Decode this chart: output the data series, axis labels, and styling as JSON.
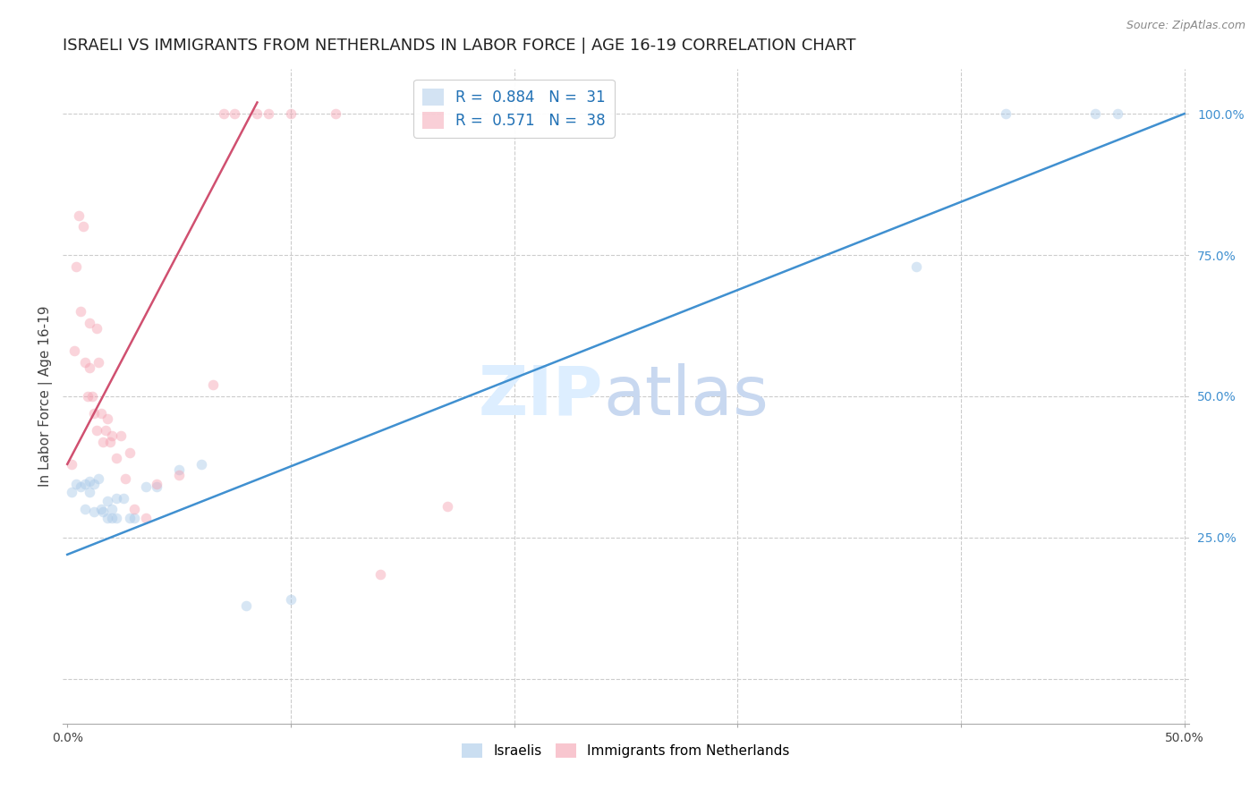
{
  "title": "ISRAELI VS IMMIGRANTS FROM NETHERLANDS IN LABOR FORCE | AGE 16-19 CORRELATION CHART",
  "source": "Source: ZipAtlas.com",
  "ylabel": "In Labor Force | Age 16-19",
  "y_ticks_right": [
    0.25,
    0.5,
    0.75,
    1.0
  ],
  "y_tick_labels_right": [
    "25.0%",
    "50.0%",
    "75.0%",
    "100.0%"
  ],
  "xlim": [
    -0.002,
    0.502
  ],
  "ylim": [
    -0.08,
    1.08
  ],
  "blue_color": "#a8c8e8",
  "pink_color": "#f4a0b0",
  "blue_line_color": "#4090d0",
  "pink_line_color": "#d05070",
  "watermark": "ZIPatlas",
  "watermark_color": "#ddeeff",
  "blue_scatter_x": [
    0.002,
    0.004,
    0.006,
    0.008,
    0.008,
    0.01,
    0.01,
    0.012,
    0.012,
    0.014,
    0.015,
    0.016,
    0.018,
    0.018,
    0.02,
    0.02,
    0.022,
    0.022,
    0.025,
    0.028,
    0.03,
    0.035,
    0.04,
    0.05,
    0.06,
    0.08,
    0.1,
    0.38,
    0.42,
    0.46,
    0.47
  ],
  "blue_scatter_y": [
    0.33,
    0.345,
    0.34,
    0.3,
    0.345,
    0.33,
    0.35,
    0.295,
    0.345,
    0.355,
    0.3,
    0.295,
    0.285,
    0.315,
    0.285,
    0.3,
    0.285,
    0.32,
    0.32,
    0.285,
    0.285,
    0.34,
    0.34,
    0.37,
    0.38,
    0.13,
    0.14,
    0.73,
    1.0,
    1.0,
    1.0
  ],
  "pink_scatter_x": [
    0.002,
    0.003,
    0.004,
    0.005,
    0.006,
    0.007,
    0.008,
    0.009,
    0.01,
    0.01,
    0.011,
    0.012,
    0.013,
    0.013,
    0.014,
    0.015,
    0.016,
    0.017,
    0.018,
    0.019,
    0.02,
    0.022,
    0.024,
    0.026,
    0.028,
    0.03,
    0.035,
    0.04,
    0.05,
    0.065,
    0.07,
    0.075,
    0.085,
    0.09,
    0.1,
    0.12,
    0.14,
    0.17
  ],
  "pink_scatter_y": [
    0.38,
    0.58,
    0.73,
    0.82,
    0.65,
    0.8,
    0.56,
    0.5,
    0.63,
    0.55,
    0.5,
    0.47,
    0.44,
    0.62,
    0.56,
    0.47,
    0.42,
    0.44,
    0.46,
    0.42,
    0.43,
    0.39,
    0.43,
    0.355,
    0.4,
    0.3,
    0.285,
    0.345,
    0.36,
    0.52,
    1.0,
    1.0,
    1.0,
    1.0,
    1.0,
    1.0,
    0.185,
    0.305
  ],
  "blue_line_x": [
    0.0,
    0.5
  ],
  "blue_line_y": [
    0.22,
    1.0
  ],
  "pink_line_x": [
    0.0,
    0.085
  ],
  "pink_line_y": [
    0.38,
    1.02
  ],
  "marker_size": 70,
  "marker_alpha": 0.45,
  "grid_color": "#cccccc",
  "background_color": "#ffffff",
  "title_fontsize": 13,
  "axis_label_fontsize": 11,
  "legend_fontsize": 12,
  "tick_fontsize": 10,
  "legend_label_blue": "Israelis",
  "legend_label_pink": "Immigrants from Netherlands",
  "legend_r_blue": "0.884",
  "legend_n_blue": "31",
  "legend_r_pink": "0.571",
  "legend_n_pink": "38"
}
